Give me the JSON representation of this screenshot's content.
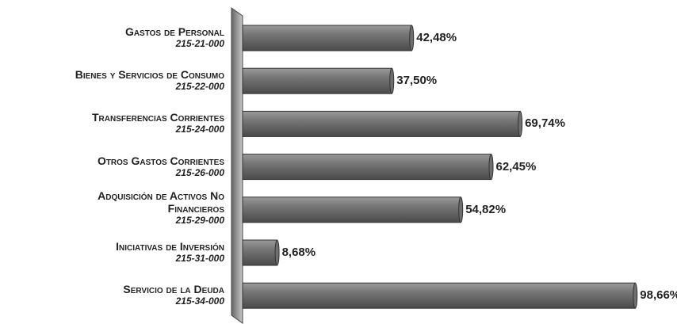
{
  "chart_data": {
    "type": "hbar",
    "categories": [
      "Gastos de Personal",
      "Bienes y Servicios de Consumo",
      "Transferencias Corrientes",
      "Otros Gastos Corrientes",
      "Adquisición de Activos No\nFinancieros",
      "Iniciativas de Inversión",
      "Servicio de la Deuda"
    ],
    "category_codes": [
      "215-21-000",
      "215-22-000",
      "215-24-000",
      "215-26-000",
      "215-29-000",
      "215-31-000",
      "215-34-000"
    ],
    "values": [
      42.48,
      37.5,
      69.74,
      62.45,
      54.82,
      8.68,
      98.66
    ],
    "value_labels": [
      "42,48%",
      "37,50%",
      "69,74%",
      "62,45%",
      "54,82%",
      "8,68%",
      "98,66%"
    ],
    "color": "#6e6e6e",
    "xlim": [
      0,
      100
    ]
  }
}
